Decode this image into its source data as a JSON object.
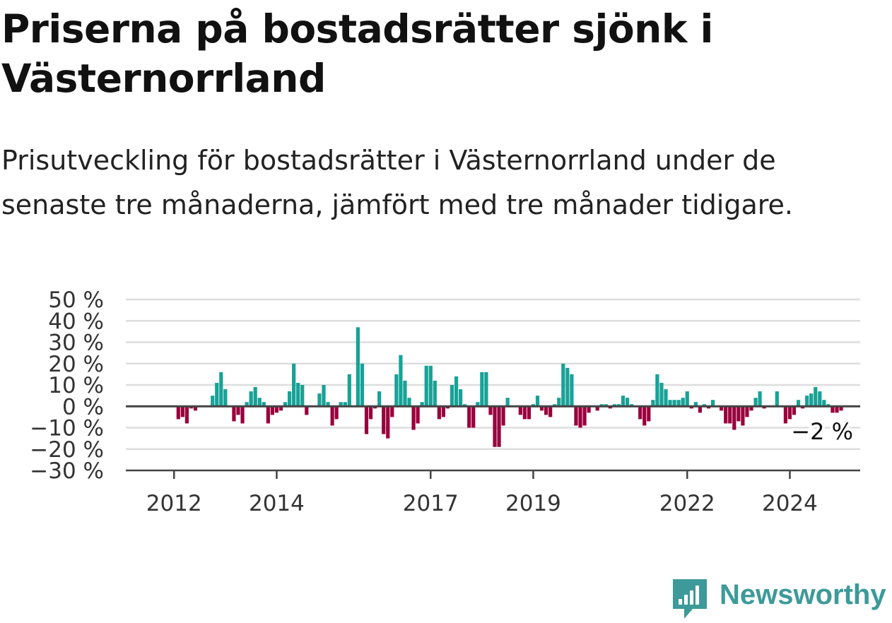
{
  "title": "Priserna på bostadsrätter sjönk i Västernorrland",
  "subtitle": "Prisutveckling för bostadsrätter i Västernorrland under de senaste tre månaderna, jämfört med tre månader tidigare.",
  "brand": {
    "name": "Newsworthy",
    "color": "#3d9a99",
    "icon": "newsworthy-logo-icon"
  },
  "colors": {
    "positive": "#17a297",
    "negative": "#99003c",
    "grid": "#dddddd",
    "axis": "#444444"
  },
  "chart_data": {
    "type": "bar",
    "x_start": "2011-10",
    "x_step": "month",
    "ylim": [
      -30,
      50
    ],
    "yticks": [
      -30,
      -20,
      -10,
      0,
      10,
      20,
      30,
      40,
      50
    ],
    "ytick_labels": [
      "−30 %",
      "−20 %",
      "−10 %",
      "0 %",
      "10 %",
      "20 %",
      "30 %",
      "40 %",
      "50 %"
    ],
    "xticks": [
      {
        "label": "2012",
        "date": "2012-01"
      },
      {
        "label": "2014",
        "date": "2014-01"
      },
      {
        "label": "2017",
        "date": "2017-01"
      },
      {
        "label": "2019",
        "date": "2019-01"
      },
      {
        "label": "2022",
        "date": "2022-01"
      },
      {
        "label": "2024",
        "date": "2024-01"
      }
    ],
    "grid": true,
    "end_label": "−2 %",
    "values": [
      0,
      0,
      0,
      0,
      -6,
      -5,
      -8,
      -1,
      -2,
      0,
      0,
      0,
      5,
      11,
      16,
      8,
      0,
      -7,
      -4,
      -8,
      2,
      7,
      9,
      4,
      2,
      -8,
      -4,
      -3,
      -2,
      2,
      7,
      20,
      11,
      10,
      -4,
      0,
      0,
      6,
      10,
      2,
      -9,
      -6,
      2,
      2,
      15,
      0,
      37,
      20,
      -13,
      -6,
      -1,
      7,
      -13,
      -15,
      -5,
      15,
      24,
      12,
      4,
      -11,
      -8,
      2,
      19,
      19,
      12,
      -6,
      -5,
      -1,
      10,
      14,
      8,
      1,
      -10,
      -10,
      2,
      16,
      16,
      -4,
      -19,
      -19,
      -9,
      4,
      0,
      0,
      -4,
      -6,
      -6,
      1,
      5,
      -2,
      -4,
      -5,
      1,
      4,
      20,
      18,
      15,
      -9,
      -10,
      -9,
      -3,
      0,
      -2,
      1,
      1,
      -1,
      1,
      1,
      5,
      4,
      1,
      0,
      -6,
      -9,
      -7,
      3,
      15,
      11,
      8,
      3,
      3,
      3,
      4,
      7,
      -1,
      2,
      -3,
      1,
      -1,
      3,
      0,
      -2,
      -8,
      -8,
      -11,
      -7,
      -9,
      -5,
      -2,
      4,
      7,
      -1,
      0,
      0,
      7,
      0,
      -8,
      -6,
      -4,
      3,
      -1,
      5,
      6,
      9,
      7,
      3,
      1,
      -3,
      -3,
      -2
    ]
  }
}
